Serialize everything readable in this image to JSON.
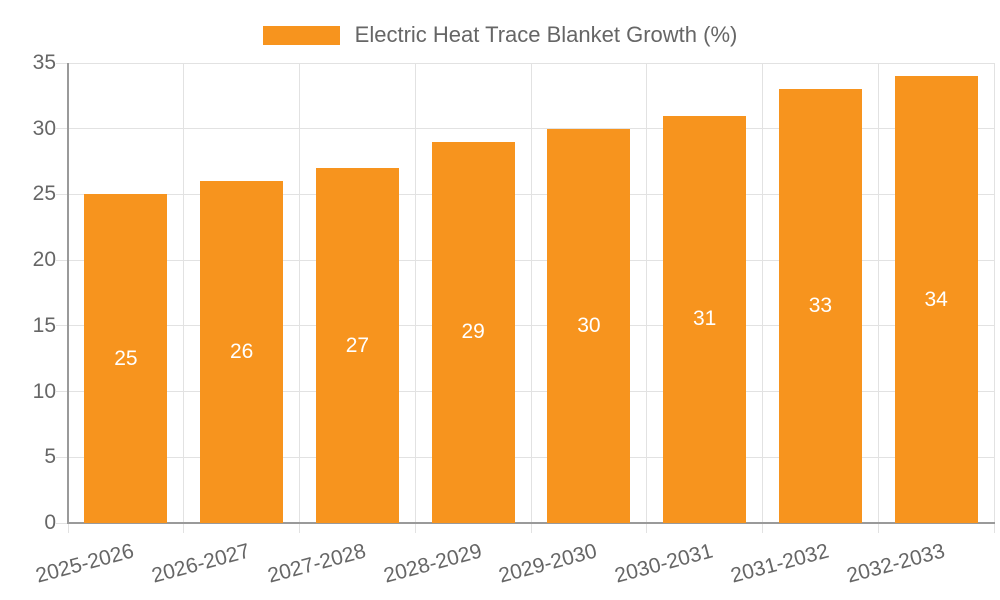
{
  "chart_data": {
    "type": "bar",
    "title": "",
    "legend": {
      "label": "Electric Heat Trace Blanket Growth (%)",
      "position": "top",
      "swatch_color": "#F7941E"
    },
    "categories": [
      "2025-2026",
      "2026-2027",
      "2027-2028",
      "2028-2029",
      "2029-2030",
      "2030-2031",
      "2031-2032",
      "2032-2033"
    ],
    "series": [
      {
        "name": "Electric Heat Trace Blanket Growth (%)",
        "values": [
          25,
          26,
          27,
          29,
          30,
          31,
          33,
          34
        ]
      }
    ],
    "values": [
      25,
      26,
      27,
      29,
      30,
      31,
      33,
      34
    ],
    "value_labels": [
      "25",
      "26",
      "27",
      "29",
      "30",
      "31",
      "33",
      "34"
    ],
    "xlabel": "",
    "ylabel": "",
    "ylim": [
      0,
      35
    ],
    "yticks": [
      0,
      5,
      10,
      15,
      20,
      25,
      30,
      35
    ],
    "grid": true,
    "x_label_rotation_deg": -15,
    "colors": {
      "bar": "#F7941E",
      "grid": "#E2E2E2",
      "axis_line": "#9A9A9A",
      "text": "#666666",
      "value_label": "#FFFFFF",
      "background": "#FFFFFF"
    }
  }
}
